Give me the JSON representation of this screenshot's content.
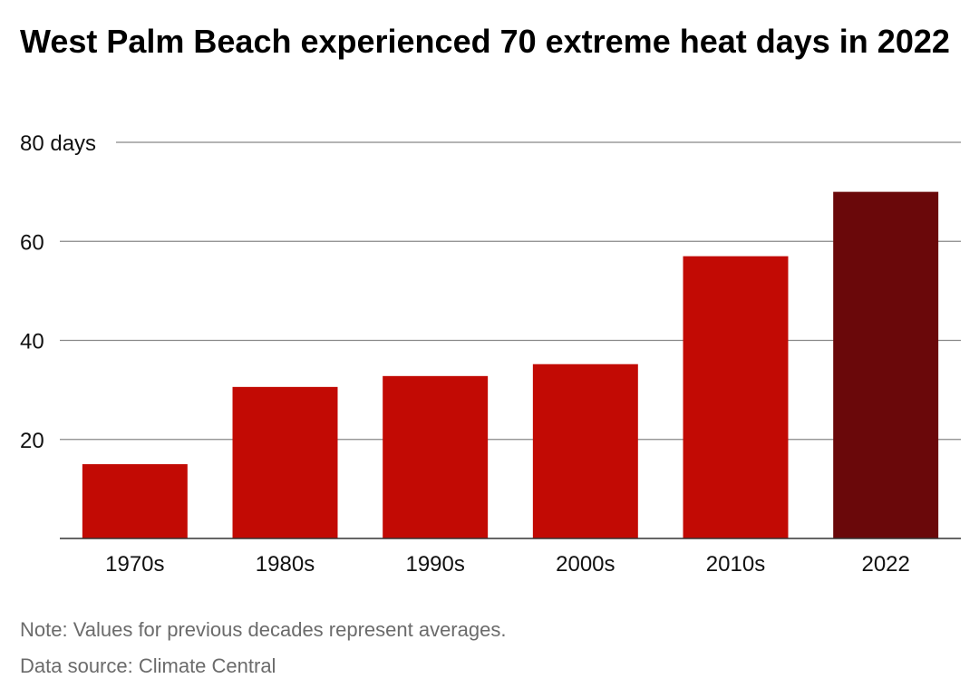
{
  "title": "West Palm Beach experienced 70 extreme heat days in 2022",
  "note": "Note: Values for previous decades represent averages.",
  "source": "Data source: Climate Central",
  "colors": {
    "bar": "#c20a04",
    "highlight": "#6a080a",
    "grid": "#888888",
    "axis": "#333333"
  },
  "chart_data": {
    "type": "bar",
    "title": "West Palm Beach experienced 70 extreme heat days in 2022",
    "xlabel": "",
    "ylabel": "",
    "categories": [
      "1970s",
      "1980s",
      "1990s",
      "2000s",
      "2010s",
      "2022"
    ],
    "values": [
      15,
      30.6,
      32.8,
      35.2,
      57,
      70
    ],
    "highlight_index": 5,
    "ylim": [
      0,
      80
    ],
    "yticks": [
      20,
      40,
      60,
      80
    ],
    "ytick_labels": [
      "20",
      "40",
      "60",
      "80 days"
    ],
    "grid": true,
    "legend": "none"
  }
}
